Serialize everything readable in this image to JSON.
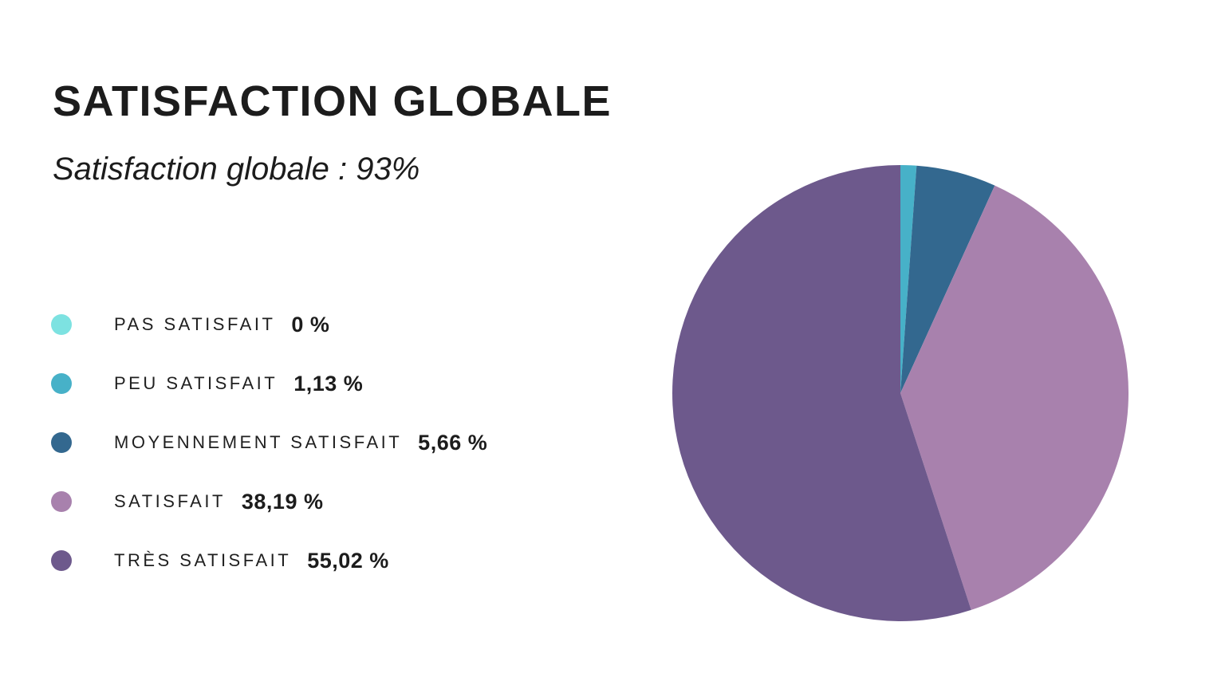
{
  "header": {
    "title": "SATISFACTION GLOBALE",
    "subtitle": "Satisfaction globale : 93%"
  },
  "chart_data": {
    "type": "pie",
    "title": "SATISFACTION GLOBALE",
    "subtitle": "Satisfaction globale : 93%",
    "start_angle_deg": -90,
    "direction": "clockwise",
    "legend_position": "left",
    "slices": [
      {
        "label": "PAS SATISFAIT",
        "value": 0,
        "value_label": "0 %",
        "color": "#7de2e1"
      },
      {
        "label": "PEU SATISFAIT",
        "value": 1.13,
        "value_label": "1,13 %",
        "color": "#47b1c8"
      },
      {
        "label": "MOYENNEMENT SATISFAIT",
        "value": 5.66,
        "value_label": "5,66 %",
        "color": "#33688f"
      },
      {
        "label": "SATISFAIT",
        "value": 38.19,
        "value_label": "38,19 %",
        "color": "#a881ad"
      },
      {
        "label": "TRÈS SATISFAIT",
        "value": 55.02,
        "value_label": "55,02 %",
        "color": "#6d598c"
      }
    ]
  }
}
